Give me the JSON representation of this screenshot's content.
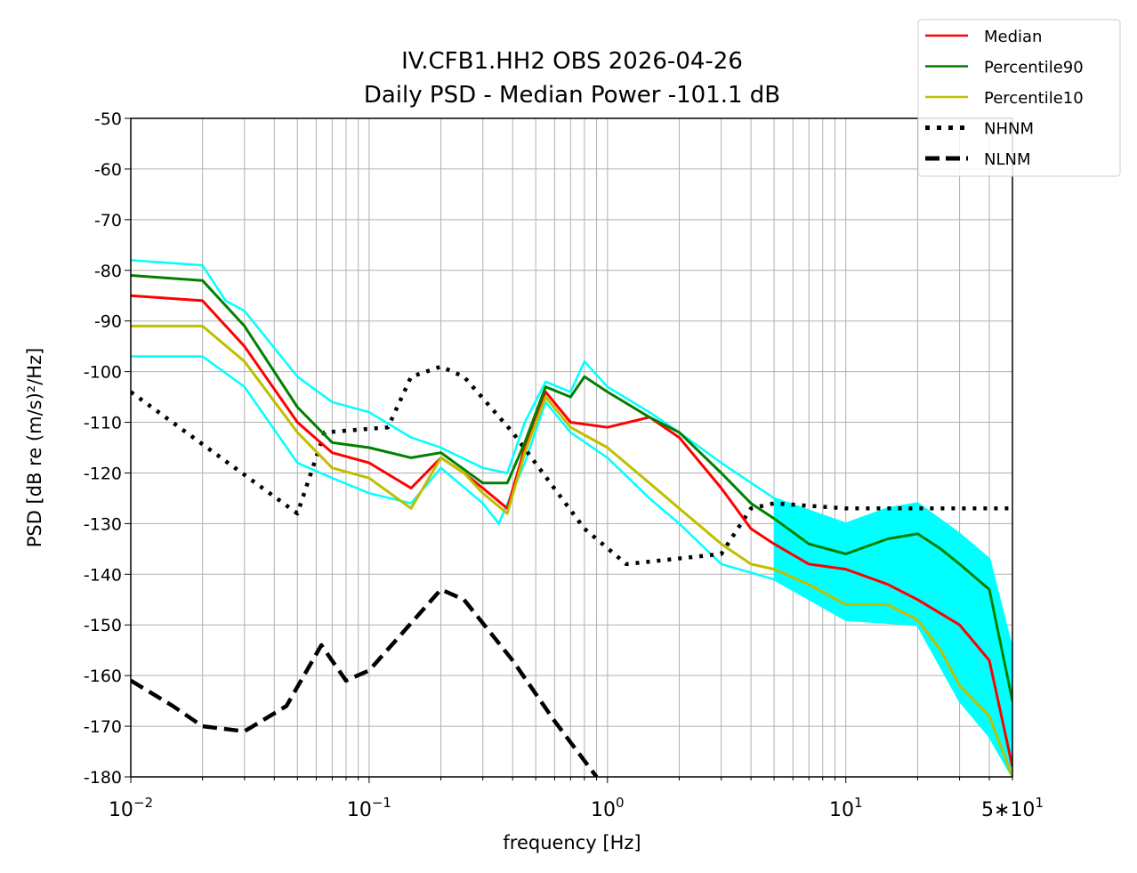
{
  "chart_data": {
    "type": "line",
    "title": [
      "IV.CFB1.HH2 OBS 2026-04-26",
      "Daily PSD - Median Power -101.1 dB"
    ],
    "xlabel": "frequency [Hz]",
    "ylabel": "PSD [dB re (m/s)²/Hz]",
    "xscale": "log",
    "xlim": [
      0.01,
      50
    ],
    "ylim": [
      -180,
      -50
    ],
    "grid": true,
    "legend_position": "top-right, outside",
    "x_ticks": [
      {
        "value": 0.01,
        "base": "10",
        "exp": "−2",
        "prefix": ""
      },
      {
        "value": 0.1,
        "base": "10",
        "exp": "−1",
        "prefix": ""
      },
      {
        "value": 1,
        "base": "10",
        "exp": "0",
        "prefix": ""
      },
      {
        "value": 10,
        "base": "10",
        "exp": "1",
        "prefix": ""
      },
      {
        "value": 50,
        "base": "10",
        "exp": "1",
        "prefix": "5∗"
      }
    ],
    "y_ticks": [
      "-50",
      "-60",
      "-70",
      "-80",
      "-90",
      "-100",
      "-110",
      "-120",
      "-130",
      "-140",
      "-150",
      "-160",
      "-170",
      "-180"
    ],
    "hourly_envelope": {
      "color": "#00ffff",
      "upper": [
        [
          0.01,
          -78
        ],
        [
          0.02,
          -79
        ],
        [
          0.025,
          -86
        ],
        [
          0.03,
          -88
        ],
        [
          0.05,
          -101
        ],
        [
          0.07,
          -106
        ],
        [
          0.1,
          -108
        ],
        [
          0.15,
          -113
        ],
        [
          0.2,
          -115
        ],
        [
          0.3,
          -119
        ],
        [
          0.38,
          -120
        ],
        [
          0.45,
          -110
        ],
        [
          0.55,
          -102
        ],
        [
          0.7,
          -104
        ],
        [
          0.8,
          -98
        ],
        [
          1,
          -103
        ],
        [
          1.5,
          -108
        ],
        [
          2,
          -112
        ],
        [
          3,
          -118
        ],
        [
          5,
          -125
        ],
        [
          10,
          -130
        ],
        [
          15,
          -127
        ],
        [
          20,
          -126
        ],
        [
          30,
          -132
        ],
        [
          40,
          -137
        ],
        [
          50,
          -155
        ]
      ],
      "lower": [
        [
          0.01,
          -97
        ],
        [
          0.02,
          -97
        ],
        [
          0.03,
          -103
        ],
        [
          0.05,
          -118
        ],
        [
          0.07,
          -121
        ],
        [
          0.1,
          -124
        ],
        [
          0.15,
          -126
        ],
        [
          0.2,
          -119
        ],
        [
          0.3,
          -126
        ],
        [
          0.35,
          -130
        ],
        [
          0.45,
          -118
        ],
        [
          0.55,
          -106
        ],
        [
          0.7,
          -112
        ],
        [
          1,
          -117
        ],
        [
          1.5,
          -125
        ],
        [
          2,
          -130
        ],
        [
          3,
          -138
        ],
        [
          5,
          -141
        ],
        [
          10,
          -149
        ],
        [
          20,
          -150
        ],
        [
          30,
          -165
        ],
        [
          40,
          -172
        ],
        [
          50,
          -180
        ]
      ]
    },
    "series": [
      {
        "name": "Median",
        "color": "#ff0000",
        "style": "solid",
        "points": [
          [
            0.01,
            -85
          ],
          [
            0.02,
            -86
          ],
          [
            0.03,
            -95
          ],
          [
            0.05,
            -110
          ],
          [
            0.07,
            -116
          ],
          [
            0.1,
            -118
          ],
          [
            0.15,
            -123
          ],
          [
            0.2,
            -117
          ],
          [
            0.25,
            -120
          ],
          [
            0.3,
            -123
          ],
          [
            0.38,
            -127
          ],
          [
            0.45,
            -115
          ],
          [
            0.55,
            -104
          ],
          [
            0.7,
            -110
          ],
          [
            1,
            -111
          ],
          [
            1.5,
            -109
          ],
          [
            2,
            -113
          ],
          [
            3,
            -123
          ],
          [
            4,
            -131
          ],
          [
            5,
            -134
          ],
          [
            7,
            -138
          ],
          [
            10,
            -139
          ],
          [
            15,
            -142
          ],
          [
            20,
            -145
          ],
          [
            30,
            -150
          ],
          [
            40,
            -157
          ],
          [
            50,
            -178
          ]
        ]
      },
      {
        "name": "Percentile90",
        "color": "#008000",
        "style": "solid",
        "points": [
          [
            0.01,
            -81
          ],
          [
            0.02,
            -82
          ],
          [
            0.03,
            -91
          ],
          [
            0.05,
            -107
          ],
          [
            0.07,
            -114
          ],
          [
            0.1,
            -115
          ],
          [
            0.15,
            -117
          ],
          [
            0.2,
            -116
          ],
          [
            0.3,
            -122
          ],
          [
            0.38,
            -122
          ],
          [
            0.45,
            -114
          ],
          [
            0.55,
            -103
          ],
          [
            0.7,
            -105
          ],
          [
            0.8,
            -101
          ],
          [
            1,
            -104
          ],
          [
            1.5,
            -109
          ],
          [
            2,
            -112
          ],
          [
            3,
            -120
          ],
          [
            4,
            -126
          ],
          [
            5,
            -129
          ],
          [
            7,
            -134
          ],
          [
            10,
            -136
          ],
          [
            15,
            -133
          ],
          [
            20,
            -132
          ],
          [
            25,
            -135
          ],
          [
            30,
            -138
          ],
          [
            40,
            -143
          ],
          [
            50,
            -165
          ]
        ]
      },
      {
        "name": "Percentile10",
        "color": "#bfbf00",
        "style": "solid",
        "points": [
          [
            0.01,
            -91
          ],
          [
            0.02,
            -91
          ],
          [
            0.03,
            -98
          ],
          [
            0.05,
            -112
          ],
          [
            0.07,
            -119
          ],
          [
            0.1,
            -121
          ],
          [
            0.15,
            -127
          ],
          [
            0.2,
            -117
          ],
          [
            0.25,
            -120
          ],
          [
            0.3,
            -124
          ],
          [
            0.38,
            -128
          ],
          [
            0.45,
            -116
          ],
          [
            0.55,
            -105
          ],
          [
            0.7,
            -111
          ],
          [
            1,
            -115
          ],
          [
            1.5,
            -122
          ],
          [
            2,
            -127
          ],
          [
            3,
            -134
          ],
          [
            4,
            -138
          ],
          [
            5,
            -139
          ],
          [
            7,
            -142
          ],
          [
            10,
            -146
          ],
          [
            15,
            -146
          ],
          [
            20,
            -149
          ],
          [
            25,
            -155
          ],
          [
            30,
            -162
          ],
          [
            40,
            -168
          ],
          [
            50,
            -180
          ]
        ]
      },
      {
        "name": "NHNM",
        "color": "#000000",
        "style": "dotted",
        "points": [
          [
            0.01,
            -104
          ],
          [
            0.05,
            -128
          ],
          [
            0.065,
            -112
          ],
          [
            0.12,
            -111
          ],
          [
            0.15,
            -101
          ],
          [
            0.2,
            -99
          ],
          [
            0.25,
            -101
          ],
          [
            0.4,
            -112
          ],
          [
            0.8,
            -131
          ],
          [
            1.2,
            -138
          ],
          [
            3,
            -136
          ],
          [
            4,
            -127
          ],
          [
            5,
            -126
          ],
          [
            10,
            -127
          ],
          [
            50,
            -127
          ]
        ]
      },
      {
        "name": "NLNM",
        "color": "#000000",
        "style": "dashed",
        "points": [
          [
            0.01,
            -161
          ],
          [
            0.015,
            -166
          ],
          [
            0.02,
            -170
          ],
          [
            0.03,
            -171
          ],
          [
            0.045,
            -166
          ],
          [
            0.063,
            -154
          ],
          [
            0.08,
            -161
          ],
          [
            0.1,
            -159
          ],
          [
            0.2,
            -143
          ],
          [
            0.25,
            -145
          ],
          [
            0.4,
            -157
          ],
          [
            0.6,
            -169
          ],
          [
            0.9,
            -180
          ]
        ]
      }
    ]
  }
}
